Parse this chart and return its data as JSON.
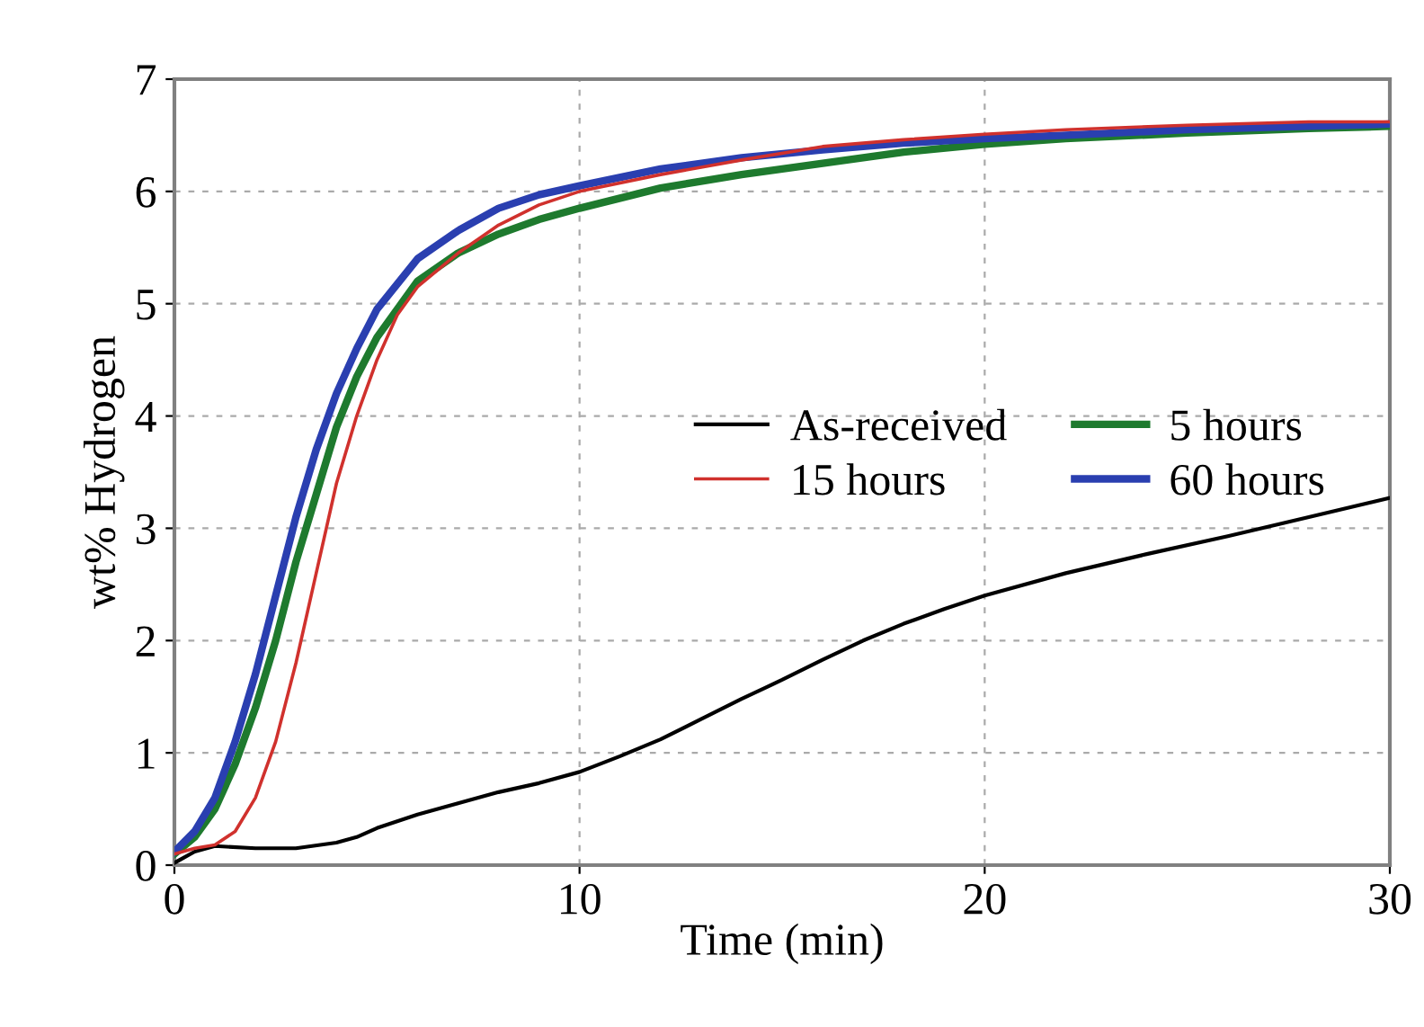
{
  "chart_data": {
    "type": "line",
    "xlabel": "Time (min)",
    "ylabel": "wt% Hydrogen",
    "xlim": [
      0,
      30
    ],
    "xticks": [
      0,
      10,
      20,
      30
    ],
    "ylim": [
      0,
      7
    ],
    "yticks": [
      0,
      1,
      2,
      3,
      4,
      5,
      6,
      7
    ],
    "grid": true,
    "legend": "center right",
    "line_style": "solid",
    "series": [
      {
        "name": "As-received",
        "color": "#000000",
        "x": [
          0,
          0.5,
          1,
          2,
          3,
          4,
          4.5,
          5,
          6,
          7,
          8,
          9,
          10,
          11,
          12,
          13,
          14,
          15,
          16,
          17,
          18,
          19,
          20,
          22,
          24,
          26,
          28,
          30
        ],
        "values": [
          0.02,
          0.12,
          0.17,
          0.15,
          0.15,
          0.2,
          0.25,
          0.33,
          0.45,
          0.55,
          0.65,
          0.73,
          0.83,
          0.97,
          1.12,
          1.3,
          1.48,
          1.65,
          1.83,
          2.0,
          2.15,
          2.28,
          2.4,
          2.6,
          2.77,
          2.93,
          3.1,
          3.27
        ]
      },
      {
        "name": "15 hours",
        "color": "#d0312d",
        "x": [
          0,
          0.5,
          1,
          1.5,
          2,
          2.5,
          3,
          3.5,
          4,
          4.5,
          5,
          5.5,
          6,
          7,
          8,
          9,
          10,
          12,
          14,
          16,
          18,
          20,
          22,
          25,
          28,
          30
        ],
        "values": [
          0.1,
          0.15,
          0.18,
          0.3,
          0.6,
          1.1,
          1.8,
          2.6,
          3.4,
          4.0,
          4.5,
          4.9,
          5.15,
          5.45,
          5.7,
          5.88,
          6.0,
          6.15,
          6.28,
          6.4,
          6.46,
          6.51,
          6.55,
          6.59,
          6.62,
          6.62
        ]
      },
      {
        "name": "5 hours",
        "color": "#1e7a2e",
        "x": [
          0,
          0.5,
          1,
          1.5,
          2,
          2.5,
          3,
          3.5,
          4,
          4.5,
          5,
          6,
          7,
          8,
          9,
          10,
          12,
          14,
          16,
          18,
          20,
          22,
          25,
          28,
          30
        ],
        "values": [
          0.1,
          0.25,
          0.5,
          0.9,
          1.4,
          2.0,
          2.7,
          3.3,
          3.9,
          4.35,
          4.7,
          5.2,
          5.45,
          5.62,
          5.75,
          5.85,
          6.03,
          6.15,
          6.25,
          6.35,
          6.42,
          6.47,
          6.52,
          6.56,
          6.58
        ]
      },
      {
        "name": "60 hours",
        "color": "#2a3fb0",
        "x": [
          0,
          0.5,
          1,
          1.5,
          2,
          2.5,
          3,
          3.5,
          4,
          4.5,
          5,
          6,
          7,
          8,
          9,
          10,
          12,
          14,
          16,
          18,
          20,
          22,
          25,
          28,
          30
        ],
        "values": [
          0.12,
          0.3,
          0.6,
          1.1,
          1.7,
          2.4,
          3.1,
          3.7,
          4.2,
          4.6,
          4.95,
          5.4,
          5.65,
          5.85,
          5.97,
          6.05,
          6.2,
          6.3,
          6.37,
          6.43,
          6.47,
          6.5,
          6.55,
          6.58,
          6.6
        ]
      }
    ]
  }
}
